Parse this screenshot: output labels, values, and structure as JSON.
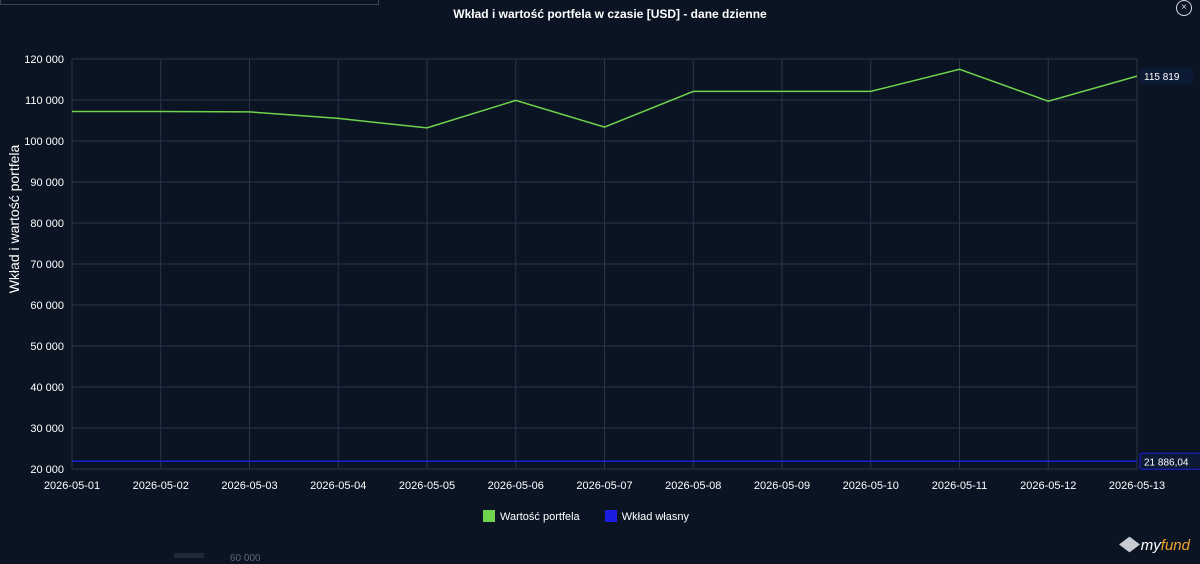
{
  "header": {
    "title": "Wkład i wartość portfela w czasie [USD] - dane dzienne",
    "close_icon": "×"
  },
  "chart_data": {
    "type": "line",
    "title": "Wkład i wartość portfela w czasie [USD] - dane dzienne",
    "xlabel": "",
    "ylabel": "Wkład i wartość portfela",
    "ylim": [
      20000,
      120000
    ],
    "yticks": [
      20000,
      30000,
      40000,
      50000,
      60000,
      70000,
      80000,
      90000,
      100000,
      110000,
      120000
    ],
    "ytick_labels": [
      "20 000",
      "30 000",
      "40 000",
      "50 000",
      "60 000",
      "70 000",
      "80 000",
      "90 000",
      "100 000",
      "110 000",
      "120 000"
    ],
    "grid": true,
    "legend": "bottom-center",
    "x": [
      "2026-05-01",
      "2026-05-02",
      "2026-05-03",
      "2026-05-04",
      "2026-05-05",
      "2026-05-06",
      "2026-05-07",
      "2026-05-08",
      "2026-05-09",
      "2026-05-10",
      "2026-05-11",
      "2026-05-12",
      "2026-05-13"
    ],
    "series": [
      {
        "name": "Wartość portfela",
        "color": "#6fd44c",
        "values": [
          107200,
          107200,
          107100,
          105500,
          103200,
          109900,
          103400,
          112100,
          112100,
          112100,
          117500,
          109700,
          115819
        ],
        "last_label": "115 819"
      },
      {
        "name": "Wkład własny",
        "color": "#1d1de0",
        "values": [
          21886.04,
          21886.04,
          21886.04,
          21886.04,
          21886.04,
          21886.04,
          21886.04,
          21886.04,
          21886.04,
          21886.04,
          21886.04,
          21886.04,
          21886.04
        ],
        "last_label": "21 886,04"
      }
    ]
  },
  "footer": {
    "logo_prefix": "my",
    "logo_suffix": "fund",
    "hint": "60 000"
  }
}
